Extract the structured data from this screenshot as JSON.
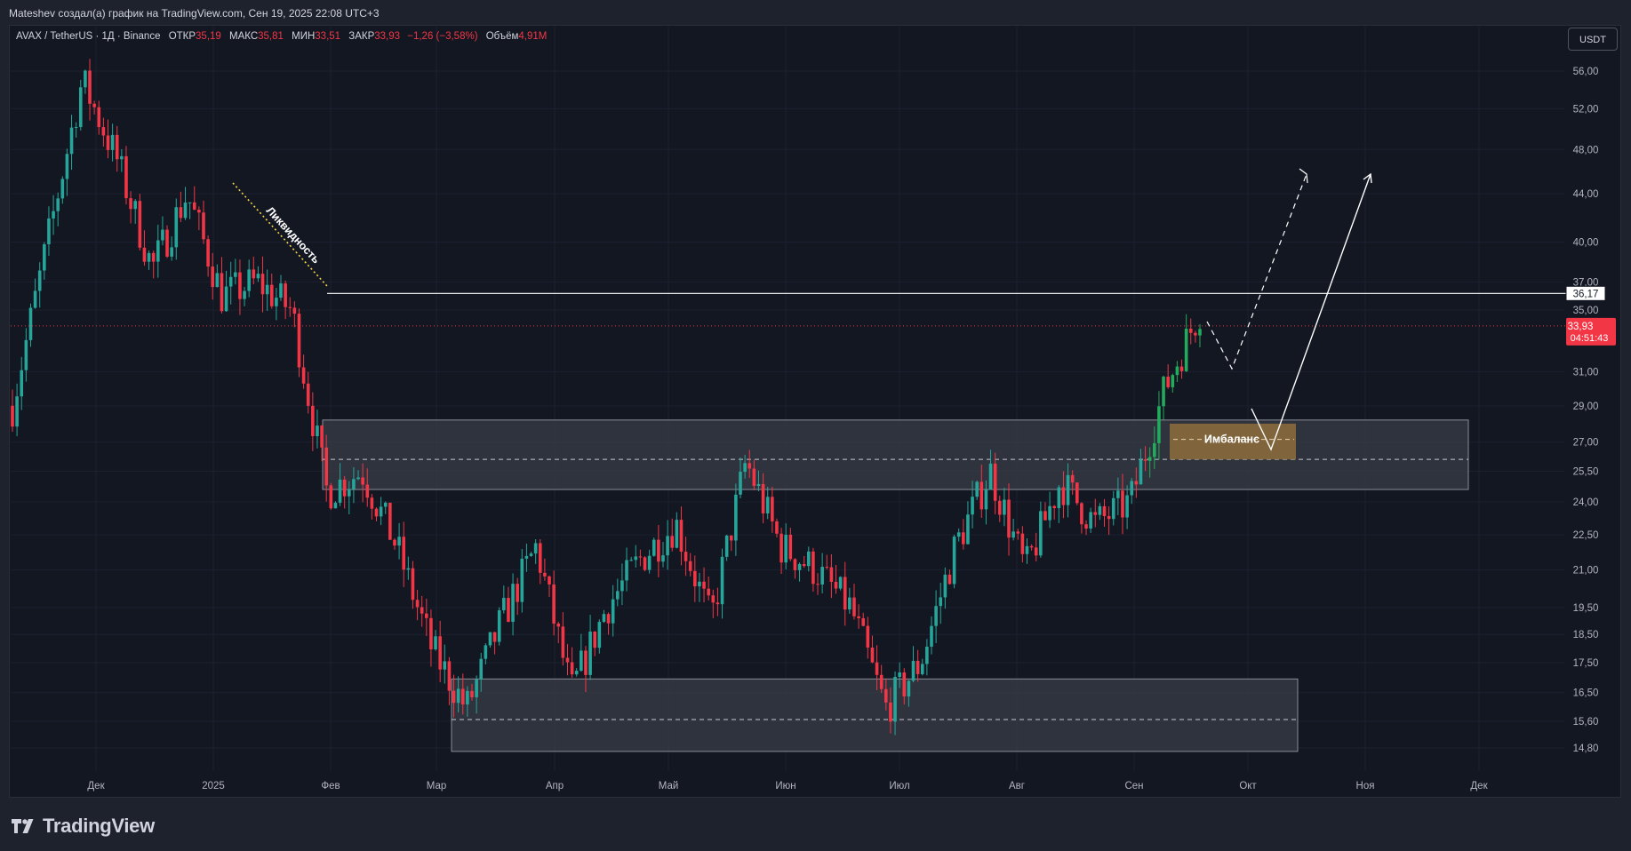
{
  "header": {
    "title": "Mateshev создал(а) график на TradingView.com, Сен 19, 2025 22:08 UTC+3"
  },
  "legend": {
    "symbol": "AVAX / TetherUS · 1Д · Binance",
    "open_label": "ОТКР",
    "open": "35,19",
    "high_label": "МАКС",
    "high": "35,81",
    "low_label": "МИН",
    "low": "33,51",
    "close_label": "ЗАКР",
    "close": "33,93",
    "change": "−1,26 (−3,58%)",
    "volume_label": "Объём",
    "volume": "4,91M"
  },
  "currency_button": "USDT",
  "footer": {
    "brand": "TradingView"
  },
  "colors": {
    "up": "#26a69a",
    "up_bright": "#22ab5c",
    "down": "#f23645",
    "background": "#131722",
    "zone": "#3a3d47",
    "imbalance": "#8a6a3c"
  },
  "chart_data": {
    "type": "candlestick",
    "title": "AVAX / TetherUS · 1Д · Binance",
    "y_axis": {
      "scale": "log",
      "ticks": [
        "56,00",
        "52,00",
        "48,00",
        "44,00",
        "40,00",
        "37,00",
        "35,00",
        "31,00",
        "29,00",
        "27,00",
        "25,50",
        "24,00",
        "22,50",
        "21,00",
        "19,50",
        "18,50",
        "17,50",
        "16,50",
        "15,60",
        "14,80"
      ]
    },
    "x_axis": {
      "ticks": [
        "Дек",
        "2025",
        "Фев",
        "Мар",
        "Апр",
        "Май",
        "Июн",
        "Июл",
        "Авг",
        "Сен",
        "Окт",
        "Ноя",
        "Дек"
      ]
    },
    "price_path": [
      {
        "date": "Нояб",
        "price": 29
      },
      {
        "date": "Дек",
        "price": 40
      },
      {
        "date": "Дек",
        "price": 55
      },
      {
        "date": "Дек",
        "price": 47
      },
      {
        "date": "2025",
        "price": 38
      },
      {
        "date": "2025",
        "price": 44
      },
      {
        "date": "Янв",
        "price": 36
      },
      {
        "date": "Янв",
        "price": 37
      },
      {
        "date": "Фев",
        "price": 35
      },
      {
        "date": "Фев",
        "price": 24.5
      },
      {
        "date": "Фев",
        "price": 25.5
      },
      {
        "date": "Мар",
        "price": 22
      },
      {
        "date": "Мар",
        "price": 18
      },
      {
        "date": "Мар",
        "price": 16
      },
      {
        "date": "Мар",
        "price": 19
      },
      {
        "date": "Апр",
        "price": 22
      },
      {
        "date": "Апр",
        "price": 16.5
      },
      {
        "date": "Апр",
        "price": 19.5
      },
      {
        "date": "Апр",
        "price": 21.5
      },
      {
        "date": "Май",
        "price": 23
      },
      {
        "date": "Май",
        "price": 19
      },
      {
        "date": "Май",
        "price": 26
      },
      {
        "date": "Май",
        "price": 22
      },
      {
        "date": "Июн",
        "price": 21
      },
      {
        "date": "Июн",
        "price": 19.5
      },
      {
        "date": "Июн",
        "price": 16
      },
      {
        "date": "Июл",
        "price": 17.5
      },
      {
        "date": "Июл",
        "price": 22
      },
      {
        "date": "Июл",
        "price": 25.5
      },
      {
        "date": "Авг",
        "price": 21
      },
      {
        "date": "Авг",
        "price": 25
      },
      {
        "date": "Авг",
        "price": 23
      },
      {
        "date": "Сен",
        "price": 24
      },
      {
        "date": "Сен",
        "price": 30
      },
      {
        "date": "Сен",
        "price": 35
      }
    ],
    "horizontal_line": {
      "value": 36.17,
      "label": "36,17"
    },
    "last_price": {
      "value": 33.93,
      "label": "33,93",
      "countdown": "04:51:43"
    },
    "zones": [
      {
        "name": "upper-range",
        "from": 24.6,
        "to": 28.2,
        "mid": 26.1
      },
      {
        "name": "lower-range",
        "from": 14.7,
        "to": 16.95,
        "mid": 15.65
      },
      {
        "name": "imbalance",
        "label": "Имбаланс",
        "from": 26.1,
        "to": 28.0
      }
    ],
    "annotations": [
      {
        "text": "Ликвидность"
      }
    ],
    "projection": {
      "dashed": [
        35,
        31,
        45
      ],
      "solid": [
        26.1,
        45
      ]
    }
  }
}
